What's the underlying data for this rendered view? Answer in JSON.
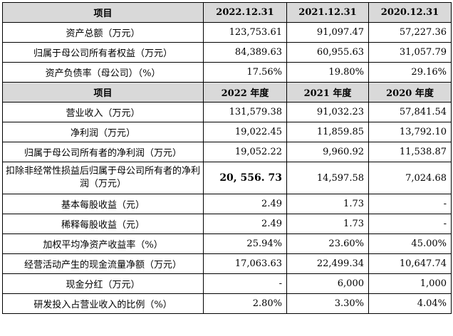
{
  "section1": {
    "headers": [
      "项目",
      "2022.12.31",
      "2021.12.31",
      "2020.12.31"
    ],
    "rows": [
      {
        "label": "资产总额（万元）",
        "values": [
          "123,753.61",
          "91,097.47",
          "57,227.36"
        ]
      },
      {
        "label": "归属于母公司所有者权益（万元）",
        "values": [
          "84,389.63",
          "60,955.63",
          "31,057.79"
        ]
      },
      {
        "label": "资产负债率（母公司）（%）",
        "values": [
          "17.56%",
          "19.80%",
          "29.16%"
        ]
      }
    ]
  },
  "section2": {
    "headers": [
      "项目",
      "2022 年度",
      "2021 年度",
      "2020 年度"
    ],
    "rows": [
      {
        "label": "营业收入（万元）",
        "values": [
          "131,579.38",
          "91,032.23",
          "57,841.54"
        ]
      },
      {
        "label": "净利润（万元）",
        "values": [
          "19,022.45",
          "11,859.85",
          "13,792.10"
        ]
      },
      {
        "label": "归属于母公司所有者的净利润（万元）",
        "values": [
          "19,052.22",
          "9,960.92",
          "11,538.87"
        ]
      },
      {
        "label": "扣除非经常性损益后归属于母公司所有者的净利润（万元）",
        "values": [
          "20, 556. 73",
          "14,597.58",
          "7,024.68"
        ]
      },
      {
        "label": "基本每股收益（元）",
        "values": [
          "2.49",
          "1.73",
          "-"
        ]
      },
      {
        "label": "稀释每股收益（元）",
        "values": [
          "2.49",
          "1.73",
          "-"
        ]
      },
      {
        "label": "加权平均净资产收益率（%）",
        "values": [
          "25.94%",
          "23.60%",
          "45.00%"
        ]
      },
      {
        "label": "经营活动产生的现金流量净额（万元）",
        "values": [
          "17,063.63",
          "22,499.34",
          "10,647.74"
        ]
      },
      {
        "label": "现金分红（万元）",
        "values": [
          "-",
          "6,000",
          "1,000"
        ]
      },
      {
        "label": "研发投入占营业收入的比例（%）",
        "values": [
          "2.80%",
          "3.30%",
          "4.04%"
        ]
      }
    ]
  }
}
